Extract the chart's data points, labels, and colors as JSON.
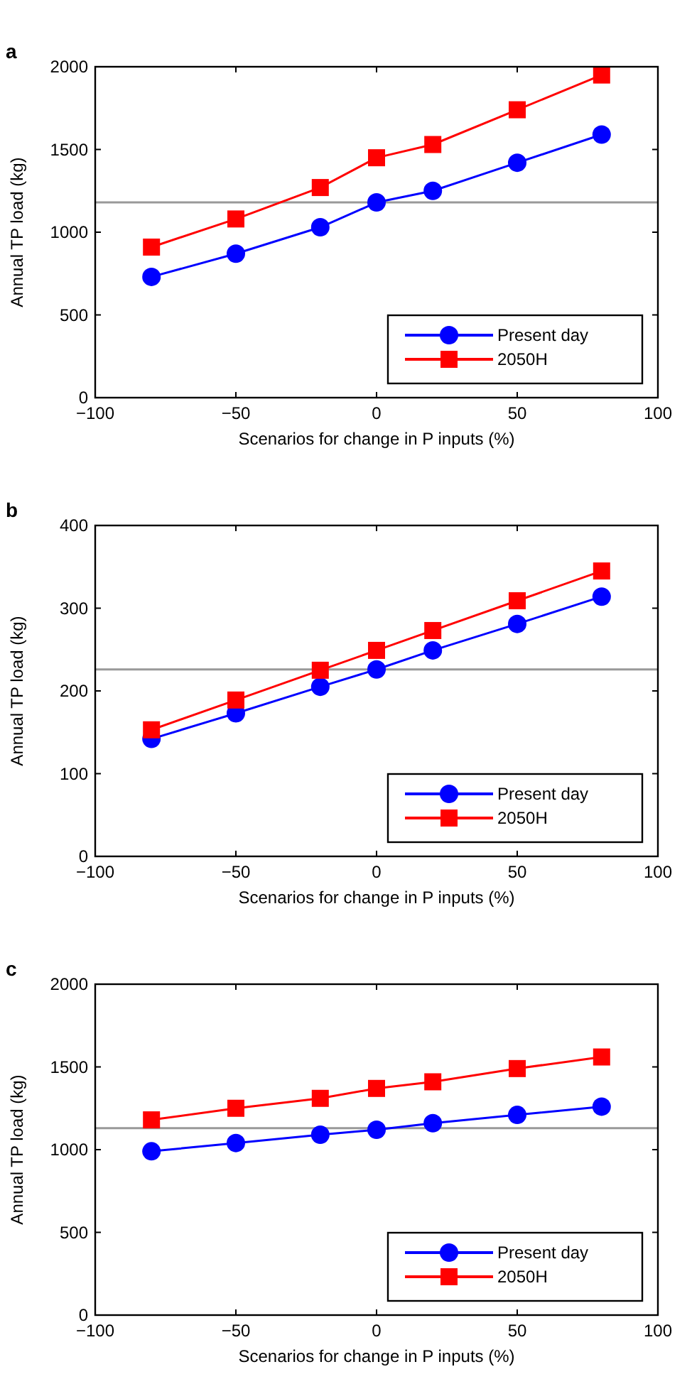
{
  "chart_data": [
    {
      "type": "line",
      "title": "a",
      "xlabel": "Scenarios for change in P inputs (%)",
      "ylabel": "Annual TP load (kg)",
      "x": [
        -80,
        -50,
        -20,
        0,
        20,
        50,
        80
      ],
      "xlim": [
        -100,
        100
      ],
      "xticks": [
        -100,
        -50,
        0,
        50,
        100
      ],
      "ylim": [
        0,
        2000
      ],
      "yticks": [
        0,
        500,
        1000,
        1500,
        2000
      ],
      "legend": "bottom right",
      "grid": false,
      "series": [
        {
          "name": "Present day",
          "color": "#0000ff",
          "marker": "circle",
          "values": [
            730,
            870,
            1030,
            1180,
            1250,
            1420,
            1590
          ]
        },
        {
          "name": "2050H",
          "color": "#ff0000",
          "marker": "square",
          "values": [
            910,
            1080,
            1270,
            1450,
            1530,
            1740,
            1950
          ]
        }
      ],
      "ref_lines": [
        {
          "axis": "y",
          "value": 1180,
          "color": "#999999"
        }
      ]
    },
    {
      "type": "line",
      "title": "b",
      "xlabel": "Scenarios for change in P inputs (%)",
      "ylabel": "Annual TP load (kg)",
      "x": [
        -80,
        -50,
        -20,
        0,
        20,
        50,
        80
      ],
      "xlim": [
        -100,
        100
      ],
      "xticks": [
        -100,
        -50,
        0,
        50,
        100
      ],
      "ylim": [
        0,
        400
      ],
      "yticks": [
        0,
        100,
        200,
        300,
        400
      ],
      "legend": "bottom right",
      "grid": false,
      "series": [
        {
          "name": "Present day",
          "color": "#0000ff",
          "marker": "circle",
          "values": [
            142,
            173,
            205,
            226,
            249,
            281,
            314
          ]
        },
        {
          "name": "2050H",
          "color": "#ff0000",
          "marker": "square",
          "values": [
            153,
            189,
            225,
            249,
            273,
            309,
            345
          ]
        }
      ],
      "ref_lines": [
        {
          "axis": "y",
          "value": 226,
          "color": "#999999"
        }
      ]
    },
    {
      "type": "line",
      "title": "c",
      "xlabel": "Scenarios for change in P inputs (%)",
      "ylabel": "Annual TP load (kg)",
      "x": [
        -80,
        -50,
        -20,
        0,
        20,
        50,
        80
      ],
      "xlim": [
        -100,
        100
      ],
      "xticks": [
        -100,
        -50,
        0,
        50,
        100
      ],
      "ylim": [
        0,
        2000
      ],
      "yticks": [
        0,
        500,
        1000,
        1500,
        2000
      ],
      "legend": "bottom right",
      "grid": false,
      "series": [
        {
          "name": "Present day",
          "color": "#0000ff",
          "marker": "circle",
          "values": [
            990,
            1040,
            1090,
            1120,
            1160,
            1210,
            1260
          ]
        },
        {
          "name": "2050H",
          "color": "#ff0000",
          "marker": "square",
          "values": [
            1180,
            1250,
            1310,
            1370,
            1410,
            1490,
            1560
          ]
        }
      ],
      "ref_lines": [
        {
          "axis": "y",
          "value": 1130,
          "color": "#999999"
        }
      ]
    }
  ]
}
